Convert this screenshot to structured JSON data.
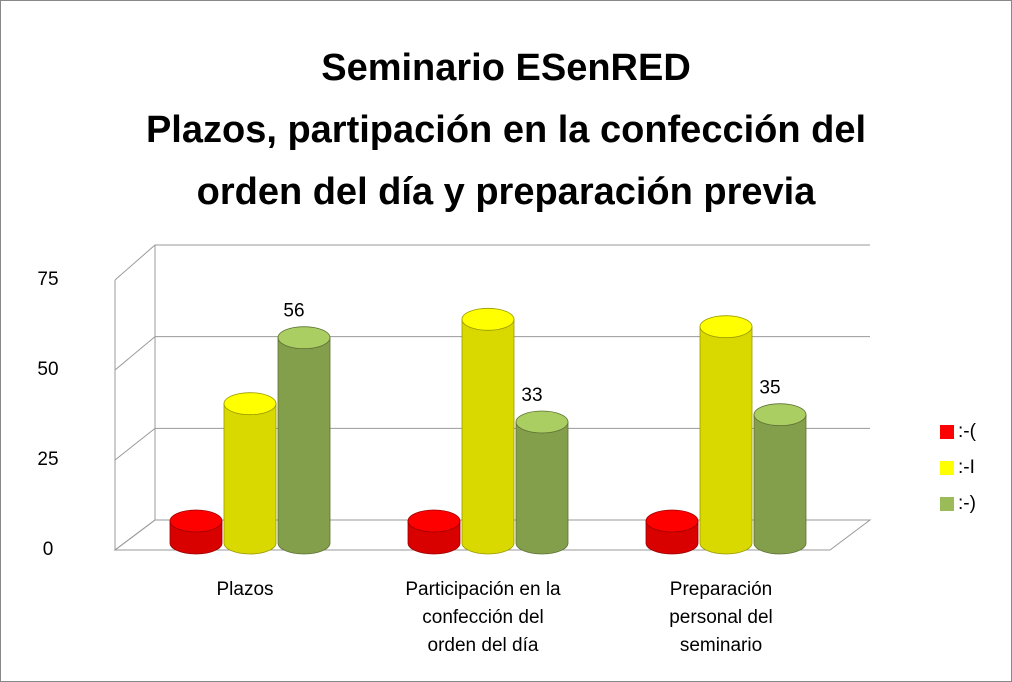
{
  "chart_data": {
    "type": "bar3d",
    "title": [
      "Seminario ESenRED",
      "Plazos, partipación en la confección del",
      "orden del día y preparación previa"
    ],
    "categories": [
      [
        "Plazos"
      ],
      [
        "Participación en la",
        "confección del",
        "orden del día"
      ],
      [
        "Preparación",
        "personal del",
        "seminario"
      ]
    ],
    "series": [
      {
        "name": ":-(",
        "color": "#ff0000",
        "values": [
          6,
          6,
          6
        ],
        "show_labels": false
      },
      {
        "name": ":-I",
        "color": "#ffff00",
        "values": [
          38,
          61,
          59
        ],
        "show_labels": false
      },
      {
        "name": ":-)",
        "color": "#9bbb59",
        "values": [
          56,
          33,
          35
        ],
        "show_labels": true
      }
    ],
    "ylim": [
      0,
      75
    ],
    "yticks": [
      0,
      25,
      50,
      75
    ],
    "grid": true,
    "legend": "right"
  }
}
